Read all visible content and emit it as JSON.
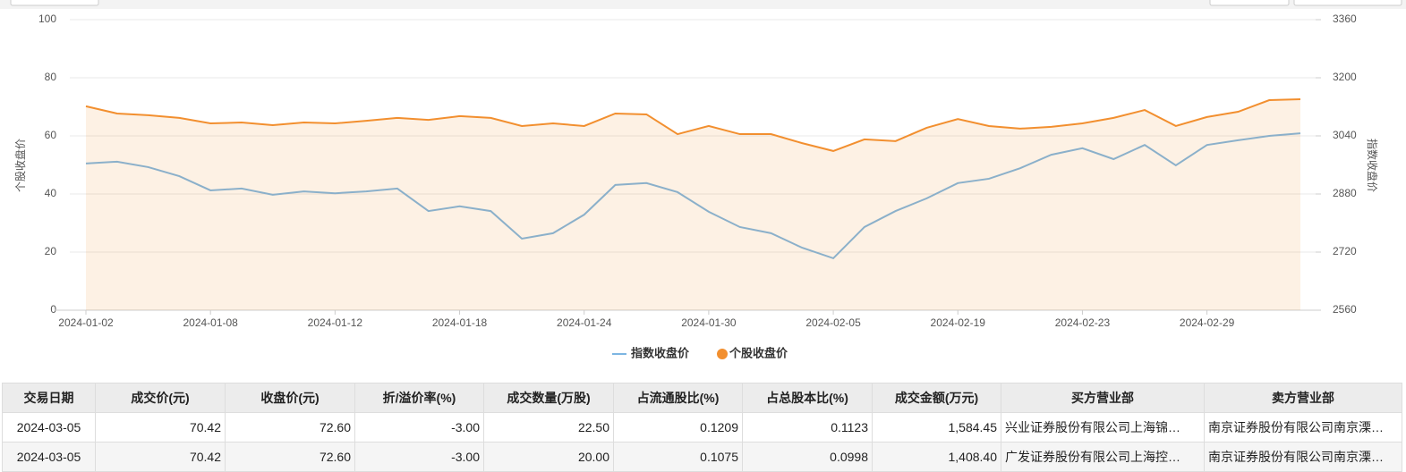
{
  "chart_data": {
    "type": "line",
    "y_label": "个股收盘价",
    "y2_label": "指数收盘价",
    "categories": [
      "2024-01-02",
      null,
      null,
      null,
      "2024-01-08",
      null,
      null,
      null,
      "2024-01-12",
      null,
      null,
      null,
      "2024-01-18",
      null,
      null,
      null,
      "2024-01-24",
      null,
      null,
      null,
      "2024-01-30",
      null,
      null,
      null,
      "2024-02-05",
      null,
      null,
      null,
      "2024-02-19",
      null,
      null,
      null,
      "2024-02-23",
      null,
      null,
      null,
      "2024-02-29",
      null,
      null,
      null
    ],
    "series": [
      {
        "name": "指数收盘价",
        "color": "#7cb5e2",
        "axis": "y2",
        "values": [
          2964,
          2969,
          2954,
          2929,
          2890,
          2895,
          2878,
          2887,
          2882,
          2887,
          2895,
          2833,
          2846,
          2833,
          2757,
          2772,
          2823,
          2905,
          2910,
          2885,
          2831,
          2789,
          2772,
          2732,
          2703,
          2789,
          2833,
          2868,
          2910,
          2922,
          2951,
          2988,
          3006,
          2976,
          3015,
          2959,
          3015,
          3028,
          3040,
          3047
        ]
      },
      {
        "name": "个股收盘价",
        "color": "#f28f2f",
        "area": true,
        "values": [
          70.2,
          67.7,
          67.1,
          66.2,
          64.3,
          64.6,
          63.7,
          64.6,
          64.3,
          65.2,
          66.2,
          65.5,
          66.8,
          66.2,
          63.4,
          64.3,
          63.4,
          67.7,
          67.4,
          60.6,
          63.4,
          60.6,
          60.6,
          57.5,
          54.8,
          58.8,
          58.2,
          62.8,
          65.8,
          63.4,
          62.5,
          63.1,
          64.3,
          66.2,
          68.9,
          63.4,
          66.5,
          68.3,
          72.3,
          72.6
        ]
      }
    ],
    "ylim": [
      0,
      100
    ],
    "yticks": [
      0,
      20,
      40,
      60,
      80,
      100
    ],
    "y2lim": [
      2560,
      3360
    ],
    "y2ticks": [
      2560,
      2720,
      2880,
      3040,
      3200,
      3360
    ],
    "grid": true,
    "legend": "bottom"
  },
  "table": {
    "header": [
      "交易日期",
      "成交价(元)",
      "收盘价(元)",
      "折/溢价率(%)",
      "成交数量(万股)",
      "占流通股比(%)",
      "占总股本比(%)",
      "成交金额(万元)",
      "买方营业部",
      "卖方营业部"
    ],
    "rows": [
      [
        "2024-03-05",
        "70.42",
        "72.60",
        "-3.00",
        "22.50",
        "0.1209",
        "0.1123",
        "1,584.45",
        "兴业证券股份有限公司上海锦…",
        "南京证券股份有限公司南京溧…"
      ],
      [
        "2024-03-05",
        "70.42",
        "72.60",
        "-3.00",
        "20.00",
        "0.1075",
        "0.0998",
        "1,408.40",
        "广发证券股份有限公司上海控…",
        "南京证券股份有限公司南京溧…"
      ]
    ]
  }
}
